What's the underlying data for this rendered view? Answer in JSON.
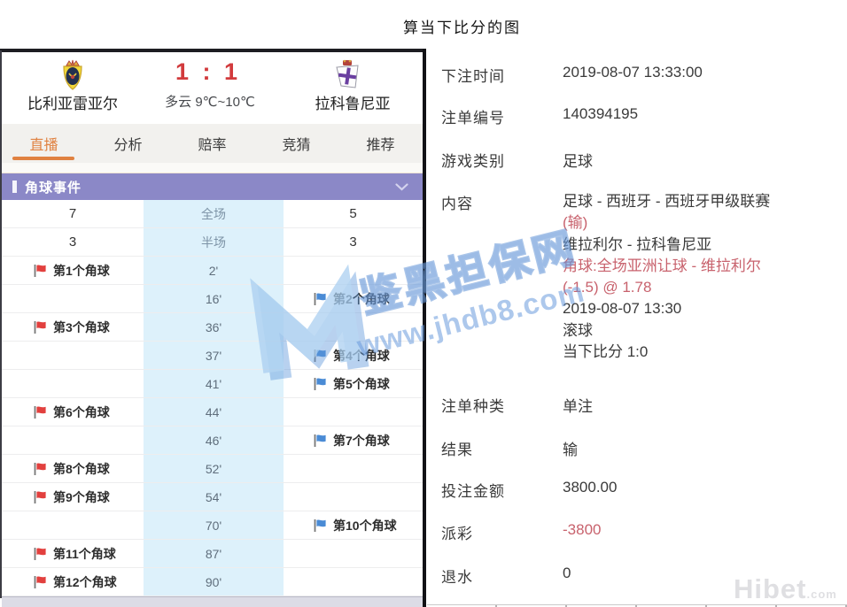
{
  "page_title": "算当下比分的图",
  "watermarks": {
    "site_cn": "鉴黑担保网",
    "site_url": "www.jhdb8.com",
    "corner_brand": "Hibet",
    "corner_brand_suffix": ".com"
  },
  "match": {
    "home_team": "比利亚雷亚尔",
    "away_team": "拉科鲁尼亚",
    "score": "1 : 1",
    "weather": "多云 9℃~10℃",
    "tabs": [
      {
        "label": "直播",
        "active": true
      },
      {
        "label": "分析",
        "active": false
      },
      {
        "label": "赔率",
        "active": false
      },
      {
        "label": "竞猜",
        "active": false
      },
      {
        "label": "推荐",
        "active": false
      }
    ],
    "section_title": "角球事件",
    "corner_rows": [
      {
        "type": "stat",
        "left": "7",
        "mid": "全场",
        "right": "5"
      },
      {
        "type": "stat",
        "left": "3",
        "mid": "半场",
        "right": "3"
      },
      {
        "type": "event",
        "side": "home",
        "label": "第1个角球",
        "minute": "2'"
      },
      {
        "type": "event",
        "side": "away",
        "label": "第2个角球",
        "minute": "16'"
      },
      {
        "type": "event",
        "side": "home",
        "label": "第3个角球",
        "minute": "36'"
      },
      {
        "type": "event",
        "side": "away",
        "label": "第4个角球",
        "minute": "37'"
      },
      {
        "type": "event",
        "side": "away",
        "label": "第5个角球",
        "minute": "41'"
      },
      {
        "type": "event",
        "side": "home",
        "label": "第6个角球",
        "minute": "44'"
      },
      {
        "type": "event",
        "side": "away",
        "label": "第7个角球",
        "minute": "46'"
      },
      {
        "type": "event",
        "side": "home",
        "label": "第8个角球",
        "minute": "52'"
      },
      {
        "type": "event",
        "side": "home",
        "label": "第9个角球",
        "minute": "54'"
      },
      {
        "type": "event",
        "side": "away",
        "label": "第10个角球",
        "minute": "70'"
      },
      {
        "type": "event",
        "side": "home",
        "label": "第11个角球",
        "minute": "87'"
      },
      {
        "type": "event",
        "side": "home",
        "label": "第12个角球",
        "minute": "90'"
      }
    ]
  },
  "bet": {
    "rows": [
      {
        "label": "下注时间",
        "value": "2019-08-07 13:33:00"
      },
      {
        "label": "注单编号",
        "value": "140394195"
      },
      {
        "label": "游戏类别",
        "value": "足球"
      },
      {
        "label": "内容",
        "lines": [
          {
            "text": "足球 - 西班牙 - 西班牙甲级联赛",
            "red": false
          },
          {
            "text": "(输)",
            "red": true
          },
          {
            "text": "维拉利尔 - 拉科鲁尼亚",
            "red": false
          },
          {
            "text": "角球:全场亚洲让球 - 维拉利尔",
            "red": true
          },
          {
            "text": "(-1.5) @ 1.78",
            "red": true
          },
          {
            "text": "2019-08-07 13:30",
            "red": false
          },
          {
            "text": "滚球",
            "red": false
          },
          {
            "text": "当下比分 1:0",
            "red": false
          }
        ]
      },
      {
        "label": "注单种类",
        "value": "单注"
      },
      {
        "label": "结果",
        "value": "输"
      },
      {
        "label": "投注金额",
        "value": "3800.00"
      },
      {
        "label": "派彩",
        "value": "-3800",
        "red": true
      },
      {
        "label": "退水",
        "value": "0"
      }
    ]
  },
  "colors": {
    "accent_orange": "#e08140",
    "score_red": "#d23b3d",
    "section_purple": "#8b88c7",
    "mid_column_blue": "#ddf1fb",
    "flag_home_red": "#e2403e",
    "flag_away_blue": "#4a8bd5",
    "negative_red": "#c8626d",
    "watermark_blue": "#6d9fdb"
  }
}
